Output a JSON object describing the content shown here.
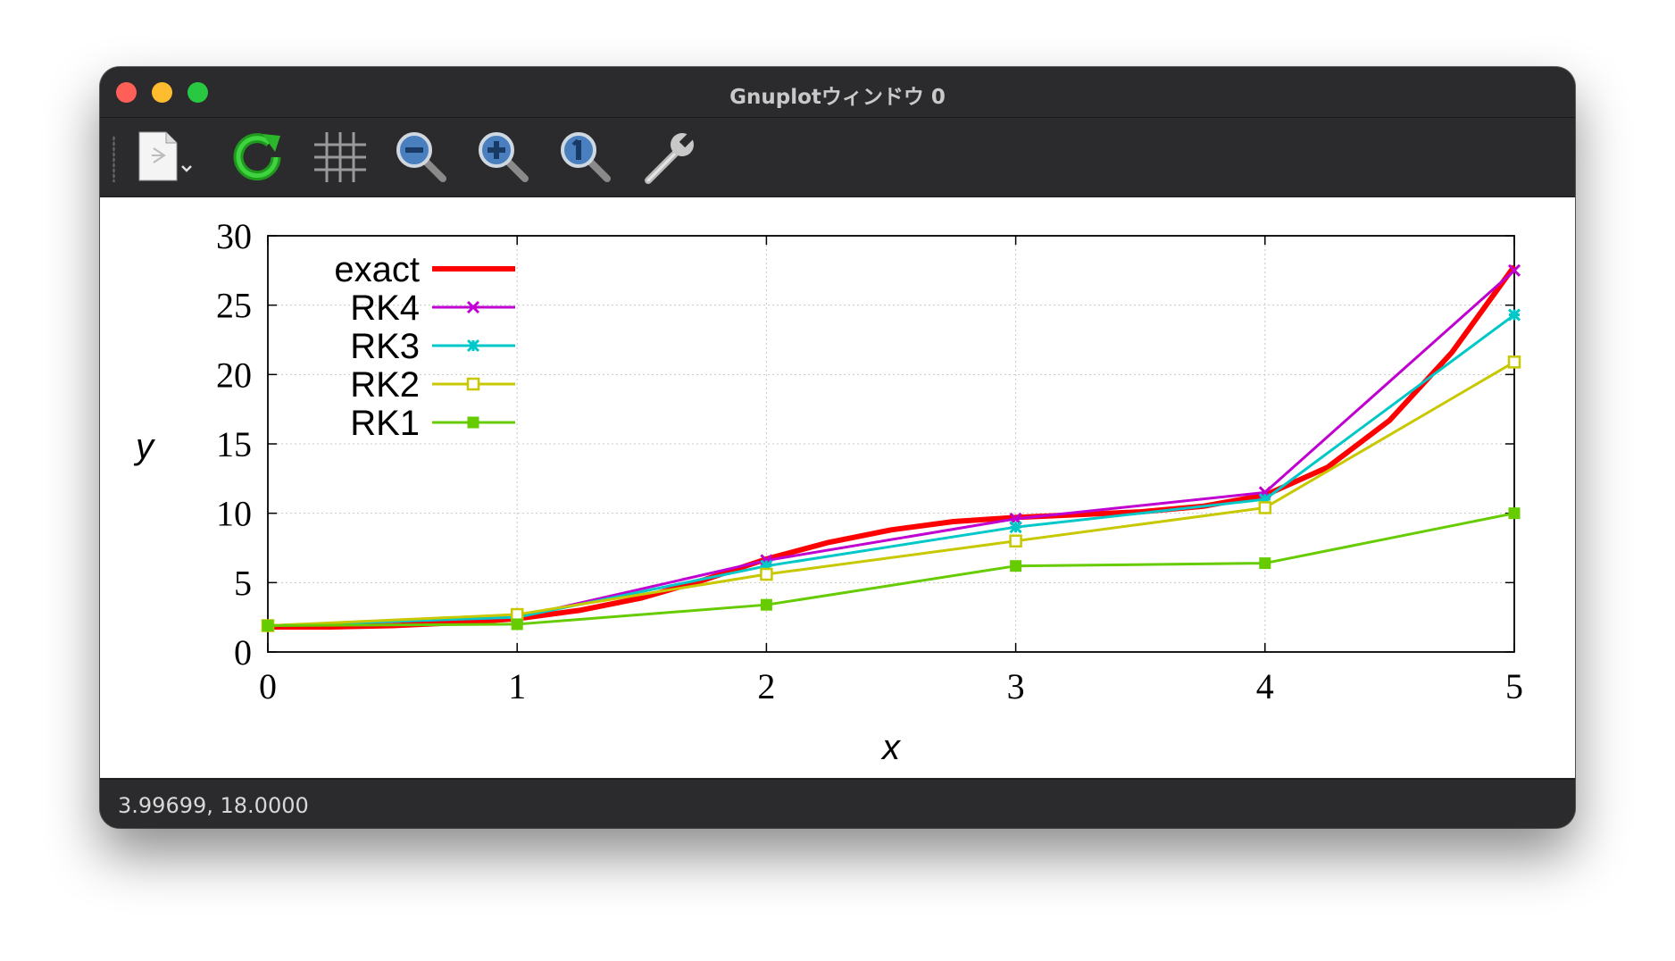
{
  "window": {
    "title": "Gnuplotウィンドウ 0"
  },
  "toolbar": {
    "items": [
      {
        "icon": "export-document-icon"
      },
      {
        "icon": "replot-refresh-icon"
      },
      {
        "icon": "grid-icon"
      },
      {
        "icon": "zoom-out-icon"
      },
      {
        "icon": "zoom-in-icon"
      },
      {
        "icon": "zoom-reset-icon"
      },
      {
        "icon": "settings-wrench-icon"
      }
    ]
  },
  "status": {
    "coords": "3.99699,  18.0000"
  },
  "chart_data": {
    "type": "line",
    "title": "",
    "xlabel": "x",
    "ylabel": "y",
    "xlim": [
      0,
      5
    ],
    "ylim": [
      0,
      30
    ],
    "xticks": [
      "0",
      "1",
      "2",
      "3",
      "4",
      "5"
    ],
    "yticks": [
      "0",
      "5",
      "10",
      "15",
      "20",
      "25",
      "30"
    ],
    "grid": true,
    "legend": "top-left",
    "series": [
      {
        "name": "exact",
        "color": "#ff0000",
        "marker": "none",
        "width": 6,
        "x": [
          0,
          0.25,
          0.5,
          0.75,
          1,
          1.25,
          1.5,
          1.75,
          2,
          2.25,
          2.5,
          2.75,
          3,
          3.25,
          3.5,
          3.75,
          4,
          4.25,
          4.5,
          4.75,
          5
        ],
        "y": [
          1.8,
          1.8,
          1.9,
          2.1,
          2.4,
          3.0,
          3.9,
          5.2,
          6.7,
          7.9,
          8.8,
          9.4,
          9.7,
          9.9,
          10.1,
          10.5,
          11.3,
          13.3,
          16.7,
          21.6,
          27.8
        ]
      },
      {
        "name": "RK4",
        "color": "#c000d0",
        "marker": "x",
        "x": [
          0,
          1,
          2,
          3,
          4,
          5
        ],
        "y": [
          1.9,
          2.5,
          6.6,
          9.6,
          11.5,
          27.5
        ]
      },
      {
        "name": "RK3",
        "color": "#00c8c8",
        "marker": "star",
        "x": [
          0,
          1,
          2,
          3,
          4,
          5
        ],
        "y": [
          1.9,
          2.5,
          6.2,
          9.0,
          11.0,
          24.3
        ]
      },
      {
        "name": "RK2",
        "color": "#c8c800",
        "marker": "open-square",
        "x": [
          0,
          1,
          2,
          3,
          4,
          5
        ],
        "y": [
          1.9,
          2.7,
          5.6,
          8.0,
          10.4,
          20.9
        ]
      },
      {
        "name": "RK1",
        "color": "#66cc00",
        "marker": "filled-square",
        "x": [
          0,
          1,
          2,
          3,
          4,
          5
        ],
        "y": [
          1.9,
          2.0,
          3.4,
          6.2,
          6.4,
          10.0
        ]
      }
    ]
  }
}
